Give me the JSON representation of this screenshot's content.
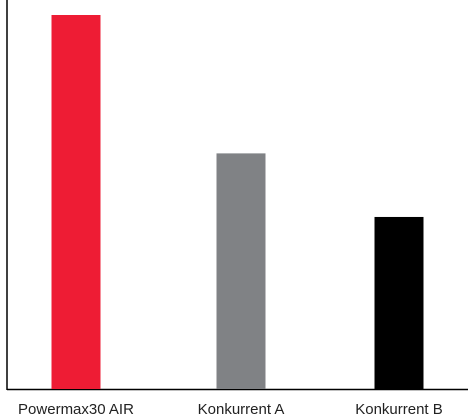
{
  "chart_data": {
    "type": "bar",
    "categories": [
      "Powermax30 AIR",
      "Konkurrent A",
      "Konkurrent B"
    ],
    "values": [
      100,
      63,
      46
    ],
    "colors": [
      "#ee1c34",
      "#808285",
      "#000000"
    ],
    "title": "",
    "xlabel": "",
    "ylabel": "",
    "ylim": [
      0,
      100
    ],
    "grid": false,
    "legend": "none"
  }
}
